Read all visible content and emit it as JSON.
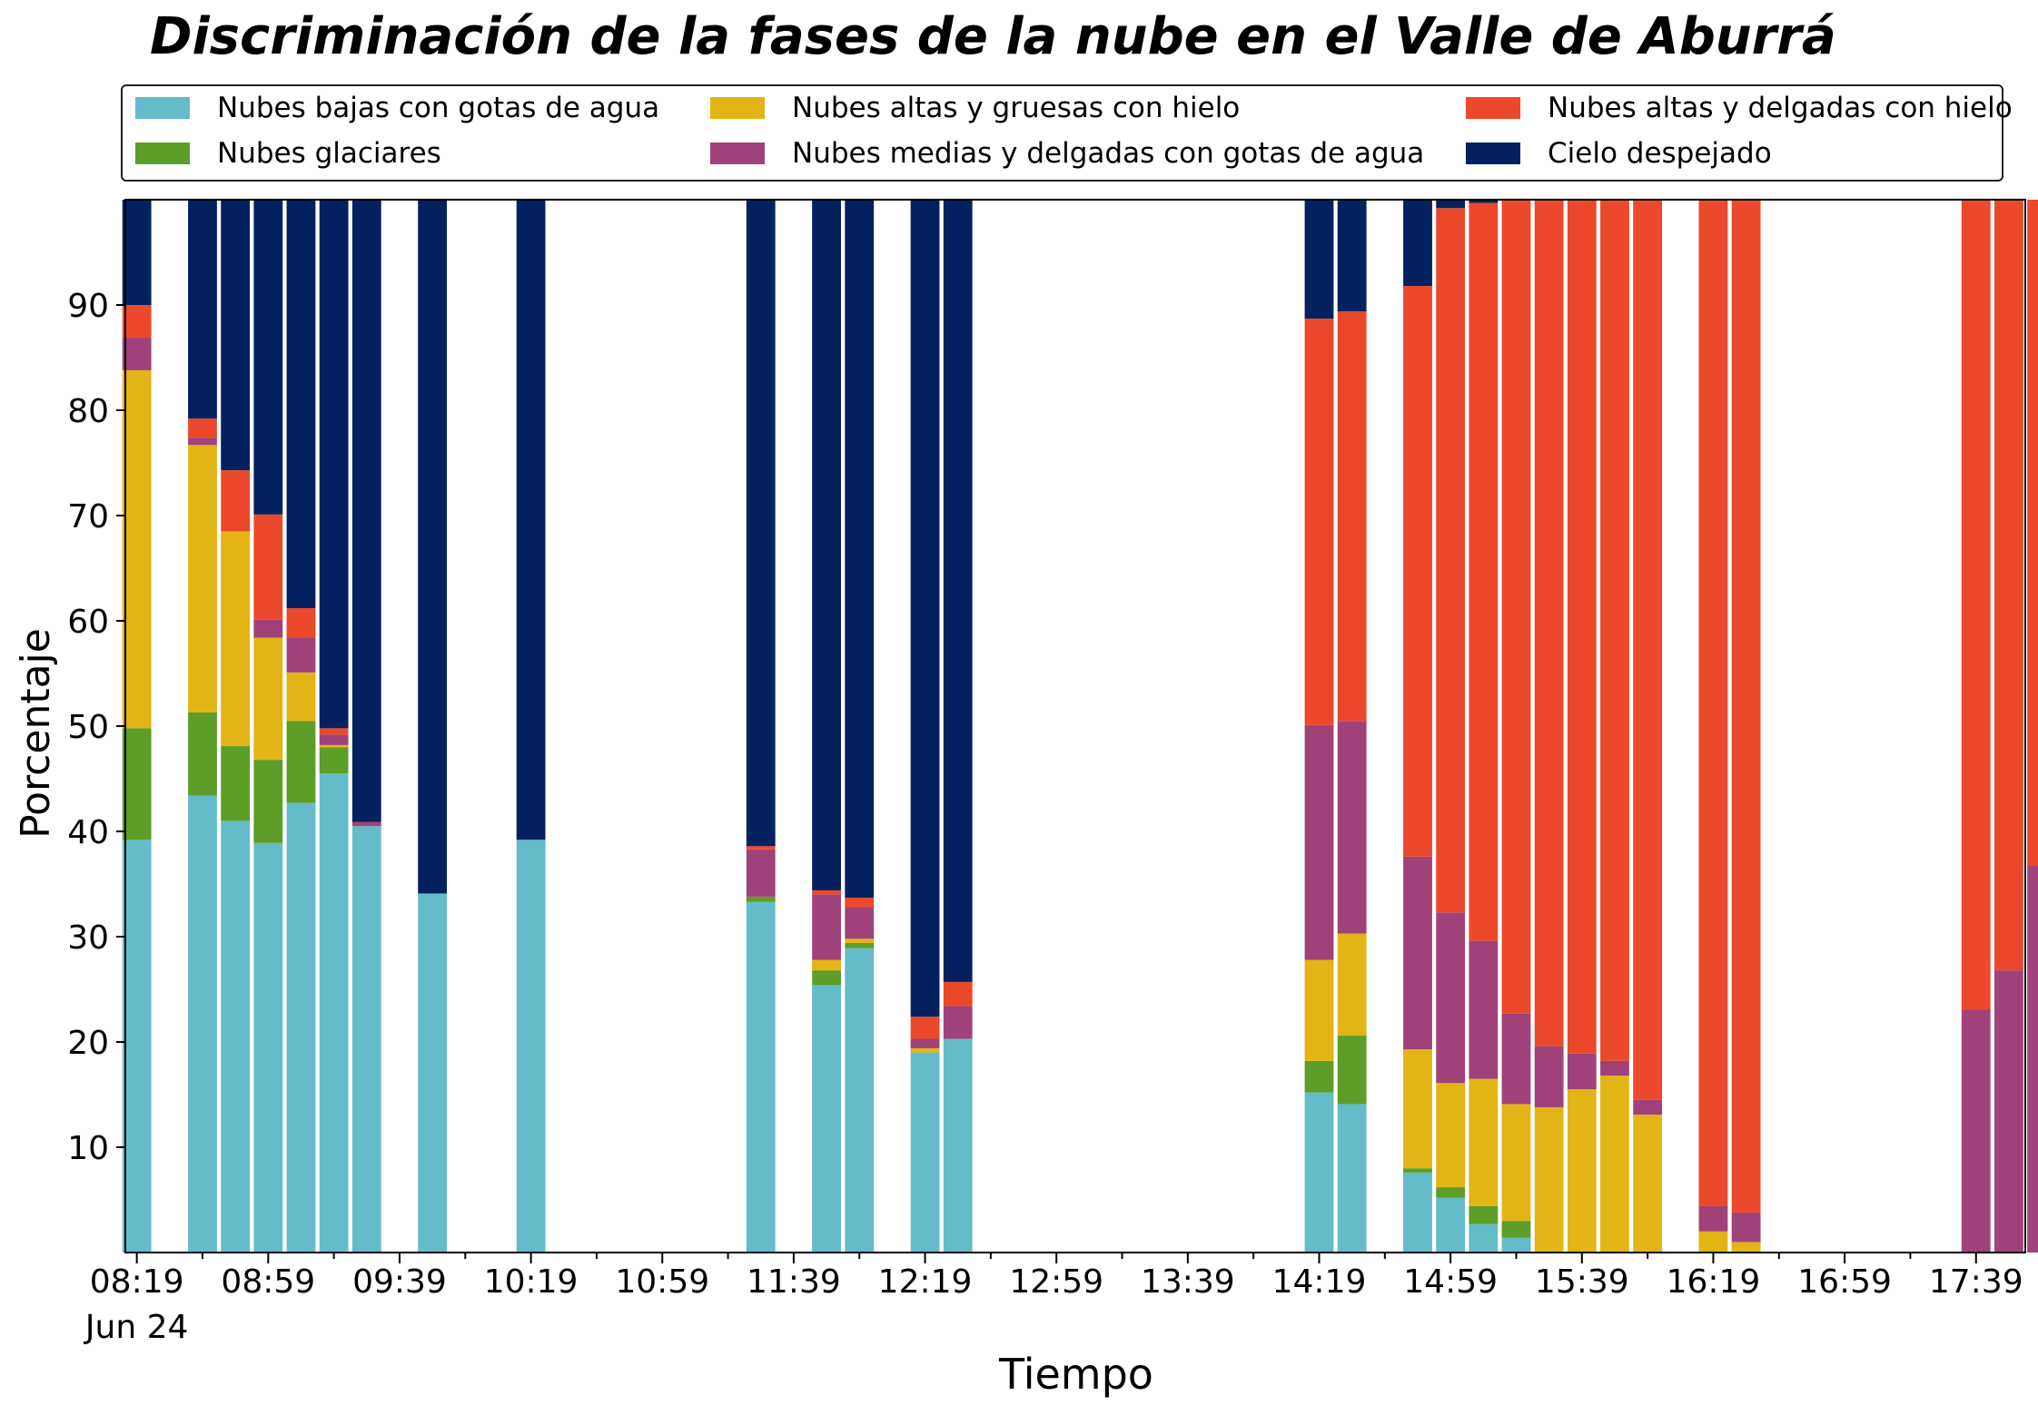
{
  "chart_data": {
    "type": "bar",
    "stacked": true,
    "title": "Discriminación de la fases de la nube en el Valle de Aburrá",
    "xlabel": "Tiempo",
    "ylabel": "Porcentaje",
    "ylim": [
      0,
      100
    ],
    "yticks": [
      10,
      20,
      30,
      40,
      50,
      60,
      70,
      80,
      90
    ],
    "x_unit_minutes": 10,
    "x_start": "08:19",
    "xlim_minutes": [
      -3.5,
      575
    ],
    "xtick_labels": [
      "08:19",
      "08:59",
      "09:39",
      "10:19",
      "10:59",
      "11:39",
      "12:19",
      "12:59",
      "13:39",
      "14:19",
      "14:59",
      "15:39",
      "16:19",
      "16:59",
      "17:39"
    ],
    "xtick_sublabel": "Jun 24",
    "legend_position": "top, above plot, 3 columns",
    "series": [
      {
        "name": "Nubes bajas con gotas de agua",
        "color": "#64BCCA"
      },
      {
        "name": "Nubes glaciares",
        "color": "#5C9E28"
      },
      {
        "name": "Nubes altas y gruesas con hielo",
        "color": "#E3B416"
      },
      {
        "name": "Nubes medias y delgadas con gotas de agua",
        "color": "#A04279"
      },
      {
        "name": "Nubes altas y delgadas con hielo",
        "color": "#EC482B"
      },
      {
        "name": "Cielo despejado",
        "color": "#04215F"
      }
    ],
    "bars": [
      {
        "time": "08:19",
        "values": [
          39.2,
          10.6,
          34.0,
          3.1,
          3.1,
          10.0
        ]
      },
      {
        "time": "08:39",
        "values": [
          43.4,
          7.9,
          25.4,
          0.7,
          1.8,
          20.8
        ]
      },
      {
        "time": "08:49",
        "values": [
          41.0,
          7.1,
          20.4,
          0.0,
          5.8,
          25.7
        ]
      },
      {
        "time": "08:59",
        "values": [
          38.9,
          7.9,
          11.6,
          1.7,
          10.0,
          29.9
        ]
      },
      {
        "time": "09:09",
        "values": [
          42.7,
          7.8,
          4.6,
          3.3,
          2.8,
          38.8
        ]
      },
      {
        "time": "09:19",
        "values": [
          45.5,
          2.5,
          0.2,
          1.0,
          0.6,
          50.2
        ]
      },
      {
        "time": "09:29",
        "values": [
          40.5,
          0.0,
          0.0,
          0.4,
          0.0,
          59.1
        ]
      },
      {
        "time": "09:49",
        "values": [
          34.1,
          0.0,
          0.0,
          0.0,
          0.0,
          65.9
        ]
      },
      {
        "time": "10:19",
        "values": [
          39.2,
          0.0,
          0.0,
          0.0,
          0.0,
          60.8
        ]
      },
      {
        "time": "11:29",
        "values": [
          33.3,
          0.5,
          0.0,
          4.5,
          0.3,
          61.4
        ]
      },
      {
        "time": "11:49",
        "values": [
          25.4,
          1.4,
          1.0,
          6.2,
          0.4,
          65.6
        ]
      },
      {
        "time": "11:59",
        "values": [
          28.9,
          0.5,
          0.4,
          3.0,
          0.9,
          66.3
        ]
      },
      {
        "time": "12:19",
        "values": [
          19.0,
          0.0,
          0.4,
          0.9,
          2.1,
          77.6
        ]
      },
      {
        "time": "12:29",
        "values": [
          20.3,
          0.0,
          0.0,
          3.1,
          2.3,
          74.3
        ]
      },
      {
        "time": "14:19",
        "values": [
          15.2,
          3.0,
          9.6,
          22.3,
          38.6,
          11.3
        ]
      },
      {
        "time": "14:29",
        "values": [
          14.1,
          6.5,
          9.7,
          20.2,
          38.9,
          10.6
        ]
      },
      {
        "time": "14:49",
        "values": [
          7.6,
          0.4,
          11.3,
          18.3,
          54.2,
          8.2
        ]
      },
      {
        "time": "14:59",
        "values": [
          5.2,
          1.0,
          9.9,
          16.2,
          66.9,
          0.8
        ]
      },
      {
        "time": "15:09",
        "values": [
          2.7,
          1.7,
          12.1,
          13.1,
          70.1,
          0.3
        ]
      },
      {
        "time": "15:19",
        "values": [
          1.4,
          1.6,
          11.1,
          8.6,
          77.4,
          0.0
        ]
      },
      {
        "time": "15:29",
        "values": [
          0.0,
          0.0,
          13.8,
          5.8,
          80.4,
          0.0
        ]
      },
      {
        "time": "15:39",
        "values": [
          0.0,
          0.0,
          15.5,
          3.4,
          81.1,
          0.0
        ]
      },
      {
        "time": "15:49",
        "values": [
          0.0,
          0.0,
          16.8,
          1.4,
          81.8,
          0.0
        ]
      },
      {
        "time": "15:59",
        "values": [
          0.0,
          0.0,
          13.1,
          1.4,
          85.5,
          0.0
        ]
      },
      {
        "time": "16:19",
        "values": [
          0.0,
          0.0,
          2.0,
          2.4,
          95.6,
          0.0
        ]
      },
      {
        "time": "16:29",
        "values": [
          0.0,
          0.0,
          1.0,
          2.8,
          96.2,
          0.0
        ]
      },
      {
        "time": "17:39",
        "values": [
          0.0,
          0.0,
          0.0,
          23.1,
          76.9,
          0.0
        ]
      },
      {
        "time": "17:49",
        "values": [
          0.0,
          0.0,
          0.0,
          26.8,
          73.2,
          0.0
        ]
      },
      {
        "time": "17:59",
        "values": [
          0.0,
          0.0,
          0.0,
          36.8,
          63.2,
          0.0
        ]
      }
    ]
  }
}
